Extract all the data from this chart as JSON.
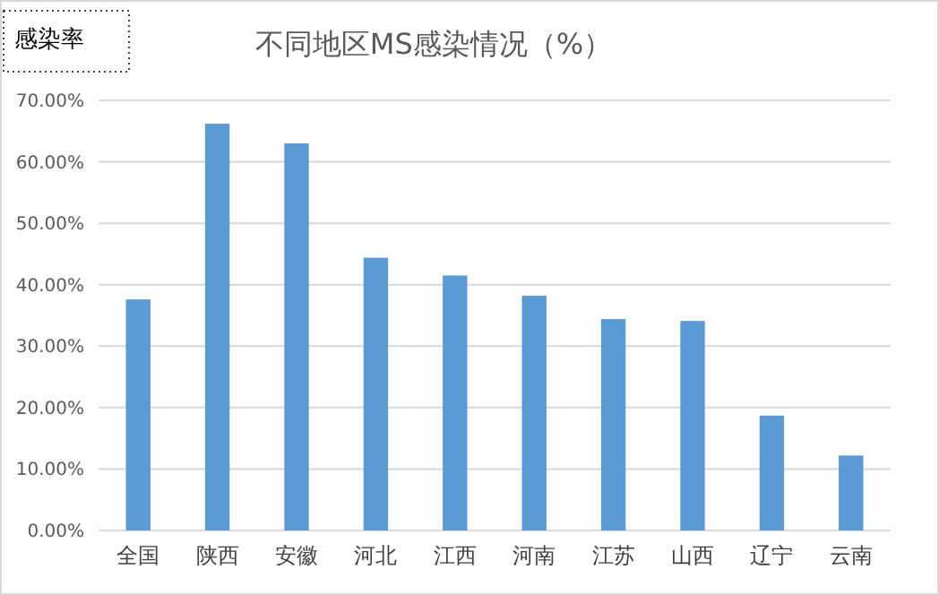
{
  "chart_data": {
    "type": "bar",
    "title": "不同地区MS感染情况（%）",
    "ylabel": "感染率",
    "categories": [
      "全国",
      "陕西",
      "安徽",
      "河北",
      "江西",
      "河南",
      "江苏",
      "山西",
      "辽宁",
      "云南"
    ],
    "values": [
      37.6,
      66.2,
      63.0,
      44.4,
      41.5,
      38.2,
      34.4,
      34.1,
      18.7,
      12.2
    ],
    "color": "#5b9bd5",
    "ylim": [
      0,
      70
    ],
    "yticks": [
      {
        "value": 0,
        "label": "0.00%"
      },
      {
        "value": 10,
        "label": "10.00%"
      },
      {
        "value": 20,
        "label": "20.00%"
      },
      {
        "value": 30,
        "label": "30.00%"
      },
      {
        "value": 40,
        "label": "40.00%"
      },
      {
        "value": 50,
        "label": "50.00%"
      },
      {
        "value": 60,
        "label": "60.00%"
      },
      {
        "value": 70,
        "label": "70.00%"
      }
    ],
    "grid": "y"
  }
}
